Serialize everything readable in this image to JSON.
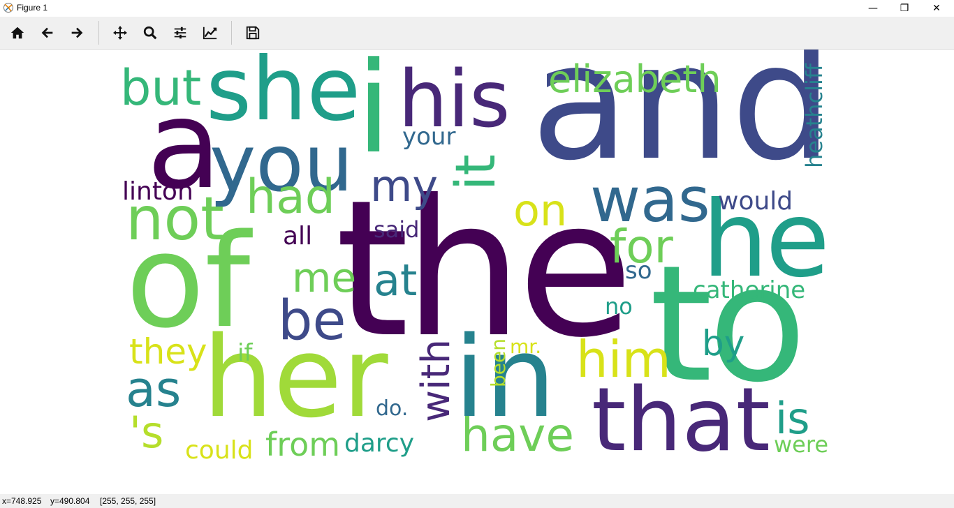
{
  "window": {
    "title": "Figure 1",
    "minimize_label": "—",
    "restore_label": "❐",
    "close_label": "✕"
  },
  "toolbar": {
    "buttons": [
      {
        "name": "home",
        "icon": "home-icon"
      },
      {
        "name": "back",
        "icon": "arrow-left-icon"
      },
      {
        "name": "forward",
        "icon": "arrow-right-icon"
      },
      {
        "name": "pan",
        "icon": "move-icon"
      },
      {
        "name": "zoom",
        "icon": "magnifier-icon"
      },
      {
        "name": "configure-subplots",
        "icon": "sliders-icon"
      },
      {
        "name": "edit-axis",
        "icon": "line-chart-icon"
      },
      {
        "name": "save",
        "icon": "floppy-disk-icon"
      }
    ]
  },
  "wordcloud": {
    "words": [
      "and",
      "the",
      "to",
      "of",
      "her",
      "she",
      "i",
      "in",
      "a",
      "you",
      "his",
      "that",
      "he",
      "was",
      "it",
      "not",
      "have",
      "him",
      "but",
      "for",
      "elizabeth",
      "had",
      "be",
      "my",
      "with",
      "on",
      "at",
      "as",
      "me",
      "they",
      "is",
      "by",
      "catherine",
      "heathcliff",
      "'s",
      "linton",
      "your",
      "from",
      "would",
      "could",
      "darcy",
      "all",
      "said",
      "were",
      "so",
      "no",
      "if",
      "mr.",
      "been",
      "do."
    ],
    "palette": {
      "dark_purple": "#440154",
      "purple": "#482878",
      "indigo": "#3e4a89",
      "blue": "#31688e",
      "teal": "#26828e",
      "green_teal": "#1f9e89",
      "green": "#35b779",
      "light_green": "#6ece58",
      "lime": "#b5de2b",
      "yellow": "#d8e219"
    }
  },
  "status": {
    "x": "x=748.925",
    "y": "y=490.804",
    "rgb": "[255, 255, 255]"
  }
}
